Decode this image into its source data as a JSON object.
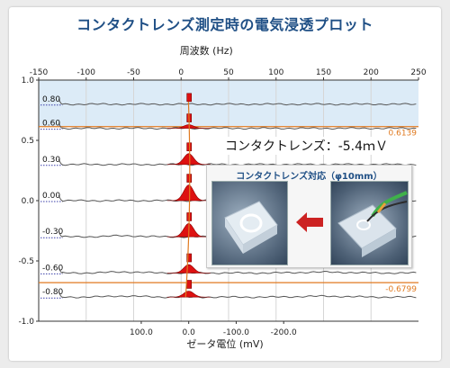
{
  "title": "コンタクトレンズ測定時の電気浸透プロット",
  "callout": "コンタクトレンズ：-5.4ｍＶ",
  "inset": {
    "title": "コンタクトレンズ対応（φ10mm）",
    "arrow_icon": "arrow-left-icon",
    "photos": [
      "contact-lens-cell-photo",
      "cell-with-tube-photo"
    ]
  },
  "colors": {
    "peak_fill": "#dd1111",
    "orange_line": "#e07a20",
    "band": "#dcebf7",
    "baseline_line": "#555555",
    "dotted_line": "#3a3fa8"
  },
  "chart_data": {
    "type": "line",
    "top_axis": {
      "label": "周波数 (Hz)",
      "range": [
        -150,
        250
      ],
      "ticks": [
        -150,
        -100,
        -50,
        0,
        50,
        100,
        150,
        200,
        250
      ]
    },
    "bottom_axis": {
      "label": "ゼータ電位 (mV)",
      "ticks": [
        100.0,
        0.0,
        -100.0,
        -200.0
      ],
      "tick_labels": [
        "100.0",
        "0.0",
        "-100.0",
        "-200.0"
      ]
    },
    "left_axis": {
      "range": [
        -1.0,
        1.0
      ],
      "ticks": [
        1.0,
        0.5,
        0.0,
        -0.5,
        -1.0
      ],
      "tick_labels": [
        "1.0",
        "0.5",
        "0.0",
        "-0.5",
        "-1.0"
      ]
    },
    "stationary_levels": [
      0.6139,
      -0.6799
    ],
    "stationary_labels": [
      "0.6139",
      "-0.6799"
    ],
    "peak_frequency_hz": 8,
    "series": [
      {
        "name": "0.80",
        "level": 0.8,
        "peak_height": 0.0
      },
      {
        "name": "0.60",
        "level": 0.6,
        "peak_height": 0.03
      },
      {
        "name": "0.30",
        "level": 0.3,
        "peak_height": 0.09
      },
      {
        "name": "0.00",
        "level": 0.0,
        "peak_height": 0.13
      },
      {
        "name": "-0.30",
        "level": -0.3,
        "peak_height": 0.11
      },
      {
        "name": "-0.60",
        "level": -0.6,
        "peak_height": 0.07
      },
      {
        "name": "-0.80",
        "level": -0.8,
        "peak_height": 0.05
      }
    ]
  }
}
